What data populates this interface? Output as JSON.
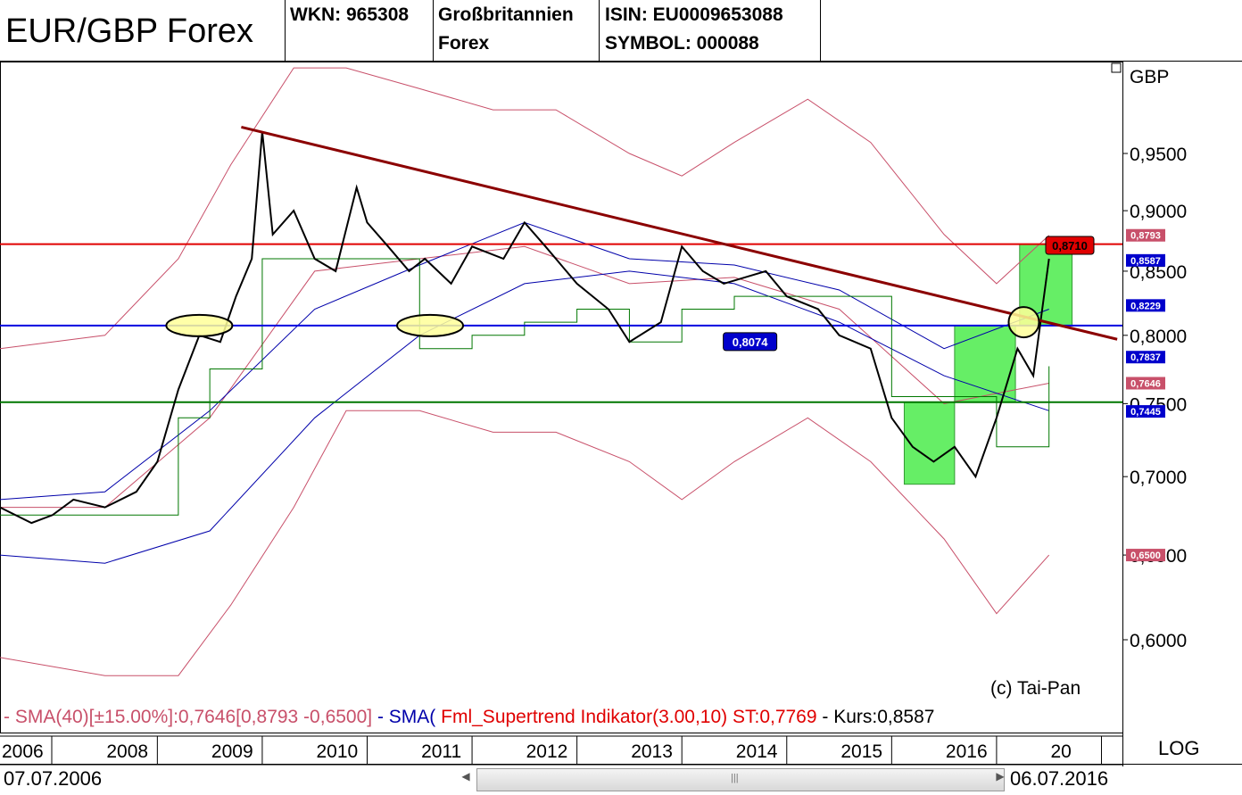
{
  "header": {
    "title": "EUR/GBP Forex",
    "wkn": "WKN: 965308",
    "market_line1": "Großbritannien",
    "market_line2": "Forex",
    "isin": "ISIN: EU0009653088",
    "symbol": "SYMBOL: 000088"
  },
  "chart_data": {
    "type": "line",
    "currency_label": "GBP",
    "y_ticks": [
      "0,9500",
      "0,9000",
      "0,8500",
      "0,8000",
      "0,7500",
      "0,7000",
      "0,6500",
      "0,6000"
    ],
    "y_tick_values": [
      0.95,
      0.9,
      0.85,
      0.8,
      0.75,
      0.7,
      0.65,
      0.6
    ],
    "x_ticks": [
      "2006",
      "2008",
      "2009",
      "2010",
      "2011",
      "2012",
      "2013",
      "2014",
      "2015",
      "2016",
      "20"
    ],
    "x_tick_values": [
      2006.0,
      2008.0,
      2009.0,
      2010.0,
      2011.0,
      2012.0,
      2013.0,
      2014.0,
      2015.0,
      2016.0,
      2017.0
    ],
    "xlim": [
      2006.5,
      2017.2
    ],
    "log_scale": true,
    "grid": false,
    "price_series": {
      "x": [
        2006.5,
        2006.8,
        2007.0,
        2007.2,
        2007.5,
        2007.8,
        2008.0,
        2008.2,
        2008.4,
        2008.6,
        2008.75,
        2008.9,
        2009.0,
        2009.1,
        2009.3,
        2009.5,
        2009.7,
        2009.9,
        2010.0,
        2010.2,
        2010.4,
        2010.55,
        2010.8,
        2011.0,
        2011.3,
        2011.5,
        2011.7,
        2012.0,
        2012.3,
        2012.5,
        2012.8,
        2013.0,
        2013.2,
        2013.4,
        2013.6,
        2013.8,
        2014.0,
        2014.3,
        2014.5,
        2014.8,
        2015.0,
        2015.2,
        2015.4,
        2015.6,
        2015.8,
        2016.0,
        2016.2,
        2016.35,
        2016.5
      ],
      "y": [
        0.68,
        0.67,
        0.675,
        0.685,
        0.68,
        0.69,
        0.71,
        0.76,
        0.8,
        0.795,
        0.83,
        0.86,
        0.97,
        0.88,
        0.9,
        0.86,
        0.85,
        0.92,
        0.89,
        0.87,
        0.85,
        0.86,
        0.84,
        0.87,
        0.86,
        0.89,
        0.87,
        0.84,
        0.82,
        0.795,
        0.81,
        0.87,
        0.85,
        0.84,
        0.845,
        0.85,
        0.83,
        0.82,
        0.8,
        0.79,
        0.74,
        0.72,
        0.71,
        0.72,
        0.7,
        0.74,
        0.79,
        0.77,
        0.86
      ]
    },
    "sma": {
      "x": [
        2006.5,
        2007.5,
        2008.5,
        2009.5,
        2010.5,
        2011.5,
        2012.5,
        2013.5,
        2014.5,
        2015.5,
        2016.5
      ],
      "y": [
        0.685,
        0.69,
        0.745,
        0.82,
        0.855,
        0.89,
        0.86,
        0.855,
        0.835,
        0.79,
        0.82
      ]
    },
    "sma_long": {
      "x": [
        2006.5,
        2007.5,
        2008.5,
        2009.5,
        2010.5,
        2011.5,
        2012.5,
        2013.5,
        2014.5,
        2015.5,
        2016.5
      ],
      "y": [
        0.65,
        0.645,
        0.665,
        0.74,
        0.8,
        0.84,
        0.85,
        0.84,
        0.81,
        0.77,
        0.745
      ]
    },
    "sma40": {
      "x": [
        2006.5,
        2007.5,
        2008.5,
        2009.5,
        2010.5,
        2011.5,
        2012.5,
        2013.5,
        2014.5,
        2015.5,
        2016.5
      ],
      "y": [
        0.68,
        0.68,
        0.74,
        0.85,
        0.86,
        0.87,
        0.84,
        0.845,
        0.82,
        0.75,
        0.7646
      ]
    },
    "band_upper": {
      "x": [
        2006.5,
        2007.5,
        2008.2,
        2008.7,
        2009.3,
        2009.8,
        2010.5,
        2011.2,
        2011.8,
        2012.5,
        2013.0,
        2013.5,
        2014.2,
        2014.8,
        2015.5,
        2016.0,
        2016.5
      ],
      "y": [
        0.79,
        0.8,
        0.86,
        0.94,
        1.03,
        1.03,
        1.01,
        0.99,
        0.99,
        0.95,
        0.93,
        0.96,
        1.0,
        0.96,
        0.88,
        0.84,
        0.8793
      ]
    },
    "band_lower": {
      "x": [
        2006.5,
        2007.5,
        2008.2,
        2008.7,
        2009.3,
        2009.8,
        2010.5,
        2011.2,
        2011.8,
        2012.5,
        2013.0,
        2013.5,
        2014.2,
        2014.8,
        2015.5,
        2016.0,
        2016.5
      ],
      "y": [
        0.59,
        0.58,
        0.58,
        0.62,
        0.68,
        0.745,
        0.745,
        0.73,
        0.73,
        0.71,
        0.685,
        0.71,
        0.74,
        0.71,
        0.66,
        0.615,
        0.65
      ]
    },
    "supertrend": {
      "x": [
        2006.5,
        2008.0,
        2008.2,
        2008.5,
        2008.7,
        2009.0,
        2009.3,
        2010.0,
        2010.5,
        2011.0,
        2011.5,
        2012.0,
        2012.5,
        2013.0,
        2013.5,
        2014.5,
        2015.0,
        2015.5,
        2016.0,
        2016.5
      ],
      "y": [
        0.675,
        0.675,
        0.74,
        0.775,
        0.775,
        0.86,
        0.86,
        0.86,
        0.79,
        0.8,
        0.81,
        0.82,
        0.795,
        0.82,
        0.83,
        0.83,
        0.755,
        0.755,
        0.72,
        0.7769
      ]
    },
    "trendline": {
      "x": [
        2008.8,
        2017.15
      ],
      "y": [
        0.974,
        0.797
      ]
    },
    "horizontal_lines": [
      {
        "y": 0.872,
        "color": "#e00000"
      },
      {
        "y": 0.8074,
        "color": "#0000e0"
      },
      {
        "y": 0.751,
        "color": "#007700"
      }
    ],
    "right_labels": [
      {
        "text": "0,8710",
        "y": 0.871,
        "bg": "#e00000",
        "fg": "#000000"
      },
      {
        "text": "0,8793",
        "y": 0.8793,
        "bg": "#c8506a",
        "fg": "#ffffff"
      },
      {
        "text": "0,8587",
        "y": 0.8587,
        "bg": "#0000cc",
        "fg": "#ffffff"
      },
      {
        "text": "0,8229",
        "y": 0.8229,
        "bg": "#0000cc",
        "fg": "#ffffff"
      },
      {
        "text": "0,7837",
        "y": 0.7837,
        "bg": "#0000cc",
        "fg": "#ffffff"
      },
      {
        "text": "0,7646",
        "y": 0.7646,
        "bg": "#c8506a",
        "fg": "#ffffff"
      },
      {
        "text": "0,7445",
        "y": 0.7445,
        "bg": "#0000cc",
        "fg": "#ffffff"
      },
      {
        "text": "0,6500",
        "y": 0.65,
        "bg": "#c8506a",
        "fg": "#ffffff"
      }
    ],
    "inline_label": {
      "text": "0,8074",
      "x": 2013.65,
      "y": 0.8074
    },
    "green_boxes": [
      {
        "x0": 2015.12,
        "x1": 2015.6,
        "y0": 0.695,
        "y1": 0.751
      },
      {
        "x0": 2015.6,
        "x1": 2016.18,
        "y0": 0.751,
        "y1": 0.8074
      },
      {
        "x0": 2016.22,
        "x1": 2016.72,
        "y0": 0.8074,
        "y1": 0.872
      }
    ],
    "ellipses": [
      {
        "x": 2008.4,
        "y": 0.8074,
        "fill": "#ffff99"
      },
      {
        "x": 2010.6,
        "y": 0.8074,
        "fill": "#ffff99"
      },
      {
        "x": 2016.26,
        "y": 0.81,
        "fill": "#ffff99"
      }
    ],
    "colors": {
      "price": "#000000",
      "sma": "#0000aa",
      "band": "#c8506a",
      "supertrend": "#007700",
      "trend": "#8b0000",
      "green_fill": "#66ee66"
    }
  },
  "legend": {
    "part1": "- SMA(40)[±15.00%]:0,7646[0,8793 -0,6500]",
    "part2": "- SMA(",
    "part3": "Fml_Supertrend Indikator(3.00,10) ST:0,7769",
    "part4": "- Kurs:0,8587"
  },
  "copyright": "(c) Tai-Pan",
  "footer": {
    "start_date": "07.07.2006",
    "end_date": "06.07.2016",
    "scale_mode": "LOG"
  }
}
